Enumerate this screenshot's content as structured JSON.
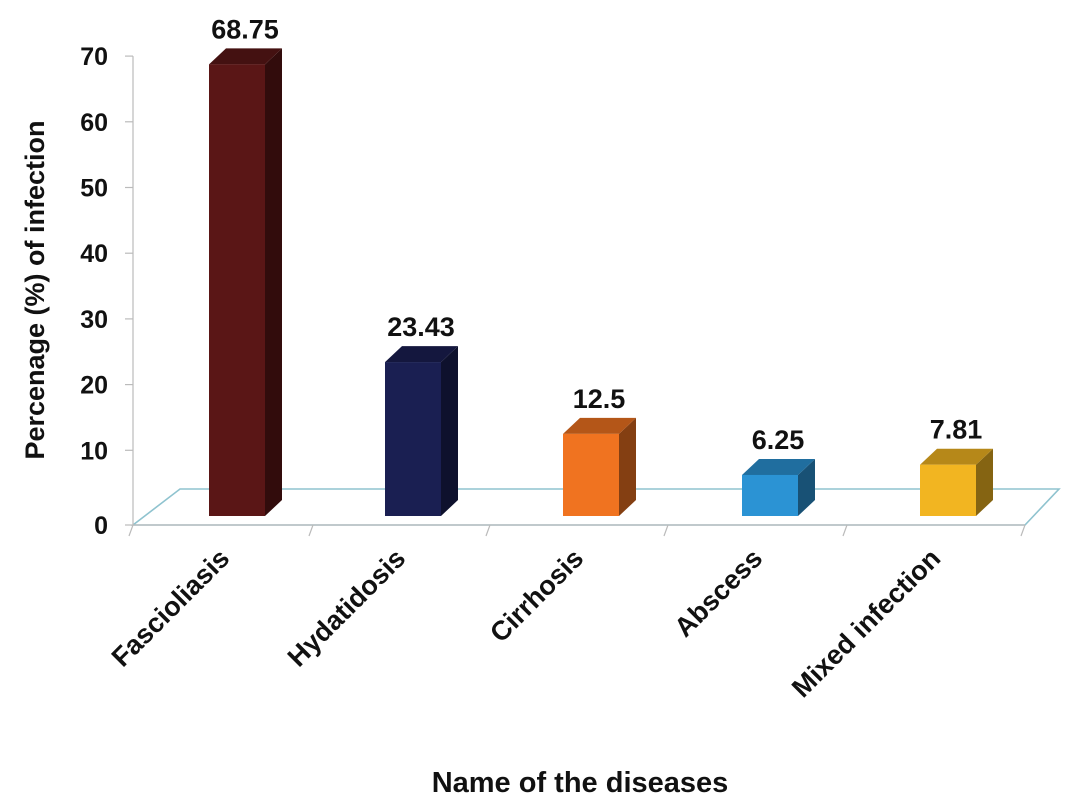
{
  "chart_data": {
    "type": "bar",
    "title": "",
    "xlabel": "Name of the diseases",
    "ylabel": "Percenage (%) of infection",
    "categories": [
      "Fascioliasis",
      "Hydatidosis",
      "Cirrhosis",
      "Abscess",
      "Mixed infection"
    ],
    "values": [
      68.75,
      23.43,
      12.5,
      6.25,
      7.81
    ],
    "data_labels": [
      "68.75",
      "23.43",
      "12.5",
      "6.25",
      "7.81"
    ],
    "ylim": [
      0,
      70
    ],
    "yticks": [
      0,
      10,
      20,
      30,
      40,
      50,
      60,
      70
    ],
    "ytick_labels": [
      "0",
      "10",
      "20",
      "30",
      "40",
      "50",
      "60",
      "70"
    ],
    "grid": false,
    "legend": "none",
    "bar_colors": [
      "#5a1616",
      "#1a1f52",
      "#f07320",
      "#2b93d4",
      "#f2b521"
    ],
    "floor_color": "#8fc3cf"
  }
}
